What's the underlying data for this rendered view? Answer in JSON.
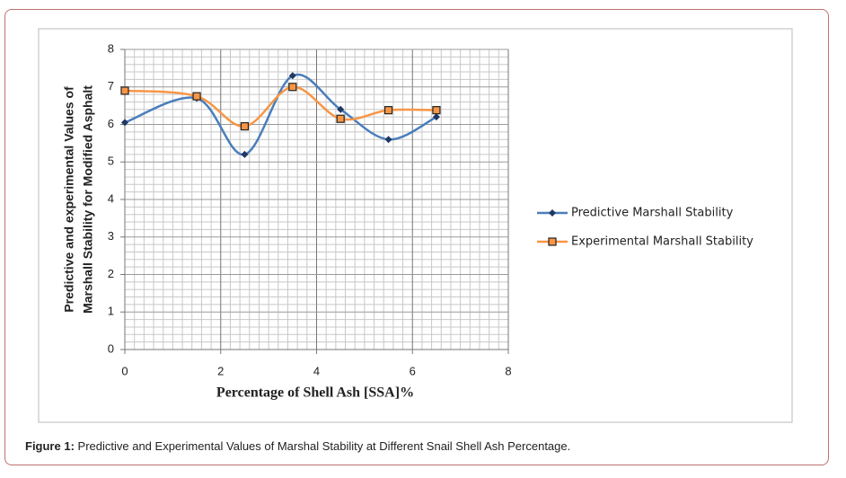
{
  "chart_data": {
    "type": "scatter",
    "xlabel": "Percentage of Shell Ash [SSA]%",
    "ylabel": [
      "Predictive and experimental Values of",
      "Marshall Stability for Modified Asphalt"
    ],
    "x": [
      0,
      1.5,
      2.5,
      3.5,
      4.5,
      5.5,
      6.5
    ],
    "series": [
      {
        "name": "Predictive Marshall Stability",
        "color": "#4a7ebb",
        "marker": "diamond",
        "values": [
          6.05,
          6.7,
          5.2,
          7.3,
          6.4,
          5.6,
          6.2
        ]
      },
      {
        "name": "Experimental Marshall Stability",
        "color": "#f79646",
        "marker": "square",
        "values": [
          6.9,
          6.75,
          5.95,
          7.0,
          6.15,
          6.38,
          6.38
        ]
      }
    ],
    "xlim": [
      0,
      8
    ],
    "xticks": [
      0,
      2,
      4,
      6,
      8
    ],
    "ylim": [
      0,
      8
    ],
    "yticks": [
      0,
      1,
      2,
      3,
      4,
      5,
      6,
      7,
      8
    ],
    "grid": true,
    "smooth": true,
    "legend": "right"
  },
  "caption": {
    "label": "Figure 1:",
    "text": "Predictive and Experimental Values of Marshal Stability at Different Snail Shell Ash Percentage."
  }
}
